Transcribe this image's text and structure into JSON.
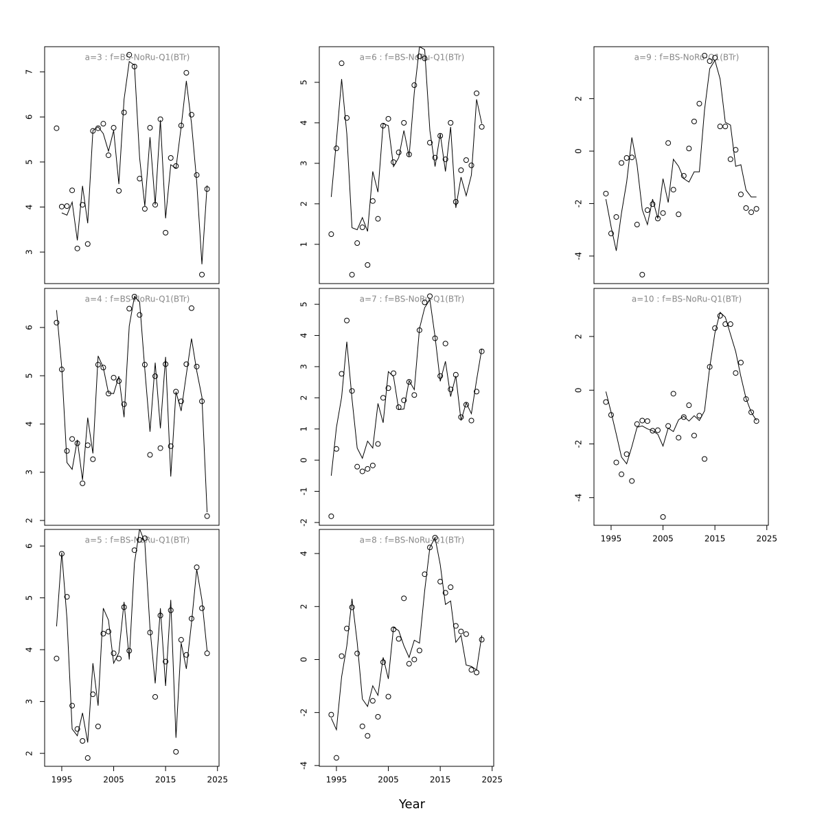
{
  "xlabel": "Year",
  "chart_data": [
    {
      "type": "line",
      "title": "a=3 : f=BS-NoRu-Q1(BTr)",
      "x": [
        1994,
        1995,
        1996,
        1997,
        1998,
        1999,
        2000,
        2001,
        2002,
        2003,
        2004,
        2005,
        2006,
        2007,
        2008,
        2009,
        2010,
        2011,
        2012,
        2013,
        2014,
        2015,
        2016,
        2017,
        2018,
        2019,
        2020,
        2021,
        2022,
        2023
      ],
      "series": [
        {
          "marker": "circle",
          "values": [
            5.75,
            4.01,
            4.02,
            4.37,
            3.08,
            4.05,
            3.18,
            5.69,
            5.75,
            5.85,
            5.15,
            5.76,
            4.36,
            6.1,
            7.38,
            7.12,
            4.63,
            3.96,
            5.76,
            4.05,
            5.95,
            3.43,
            5.09,
            4.91,
            5.81,
            6.98,
            6.05,
            4.71,
            2.5,
            4.4
          ]
        },
        {
          "marker": "none",
          "values": [
            null,
            3.87,
            3.82,
            4.11,
            3.26,
            4.47,
            3.64,
            5.7,
            5.78,
            5.63,
            5.24,
            5.7,
            4.51,
            6.39,
            7.23,
            7.15,
            5.09,
            4.02,
            5.55,
            4.05,
            5.93,
            3.75,
            4.94,
            4.86,
            5.78,
            6.8,
            5.85,
            4.56,
            2.73,
            4.48
          ]
        }
      ],
      "xlim": [
        1991.7,
        2025.3
      ],
      "ylim": [
        2.3,
        7.56
      ],
      "yticks": [
        3,
        4,
        5,
        6,
        7
      ]
    },
    {
      "type": "line",
      "title": "a=4 : f=BS-NoRu-Q1(BTr)",
      "x": [
        1994,
        1995,
        1996,
        1997,
        1998,
        1999,
        2000,
        2001,
        2002,
        2003,
        2004,
        2005,
        2006,
        2007,
        2008,
        2009,
        2010,
        2011,
        2012,
        2013,
        2014,
        2015,
        2016,
        2017,
        2018,
        2019,
        2020,
        2021,
        2022,
        2023
      ],
      "series": [
        {
          "marker": "circle",
          "values": [
            6.1,
            5.13,
            3.44,
            3.69,
            3.6,
            2.77,
            3.56,
            3.27,
            5.23,
            5.17,
            4.63,
            4.96,
            4.89,
            4.41,
            6.39,
            6.64,
            6.26,
            5.23,
            3.36,
            4.99,
            3.5,
            5.24,
            3.54,
            4.67,
            4.47,
            5.24,
            6.4,
            5.19,
            4.47,
            2.09
          ]
        },
        {
          "marker": "none",
          "values": [
            6.36,
            5.17,
            3.2,
            3.06,
            3.67,
            2.84,
            4.13,
            3.39,
            5.41,
            5.17,
            4.64,
            4.63,
            4.99,
            4.14,
            6.03,
            6.64,
            6.53,
            5.13,
            3.84,
            5.27,
            3.91,
            5.39,
            2.91,
            4.67,
            4.27,
            5.03,
            5.77,
            5.1,
            4.56,
            2.17
          ]
        }
      ],
      "xlim": [
        1991.7,
        2025.3
      ],
      "ylim": [
        1.9,
        6.81
      ],
      "yticks": [
        2,
        3,
        4,
        5,
        6
      ]
    },
    {
      "type": "line",
      "title": "a=5 : f=BS-NoRu-Q1(BTr)",
      "x": [
        1994,
        1995,
        1996,
        1997,
        1998,
        1999,
        2000,
        2001,
        2002,
        2003,
        2004,
        2005,
        2006,
        2007,
        2008,
        2009,
        2010,
        2011,
        2012,
        2013,
        2014,
        2015,
        2016,
        2017,
        2018,
        2019,
        2020,
        2021,
        2022,
        2023
      ],
      "series": [
        {
          "marker": "circle",
          "values": [
            3.83,
            5.85,
            5.02,
            2.92,
            2.47,
            2.24,
            1.91,
            3.14,
            2.52,
            4.31,
            4.35,
            3.93,
            3.83,
            4.82,
            3.98,
            5.92,
            6.12,
            6.15,
            4.33,
            3.09,
            4.66,
            3.77,
            4.76,
            2.03,
            4.19,
            3.9,
            4.6,
            5.59,
            4.8,
            3.93
          ]
        },
        {
          "marker": "none",
          "values": [
            4.45,
            5.87,
            4.6,
            2.47,
            2.34,
            2.78,
            2.21,
            3.74,
            2.92,
            4.8,
            4.57,
            3.74,
            3.94,
            4.92,
            3.81,
            5.67,
            6.33,
            6.07,
            4.41,
            3.35,
            4.8,
            3.3,
            4.96,
            2.3,
            4.13,
            3.63,
            4.52,
            5.55,
            4.96,
            3.98
          ]
        }
      ],
      "xlim": [
        1991.7,
        2025.3
      ],
      "ylim": [
        1.75,
        6.32
      ],
      "yticks": [
        2,
        3,
        4,
        5,
        6
      ],
      "xticks": [
        1995,
        2005,
        2015,
        2025
      ]
    },
    {
      "type": "line",
      "title": "a=6 : f=BS-NoRu-Q1(BTr)",
      "x": [
        1994,
        1995,
        1996,
        1997,
        1998,
        1999,
        2000,
        2001,
        2002,
        2003,
        2004,
        2005,
        2006,
        2007,
        2008,
        2009,
        2010,
        2011,
        2012,
        2013,
        2014,
        2015,
        2016,
        2017,
        2018,
        2019,
        2020,
        2021,
        2022,
        2023
      ],
      "series": [
        {
          "marker": "circle",
          "values": [
            1.25,
            3.37,
            5.47,
            4.12,
            0.25,
            1.03,
            1.42,
            0.49,
            2.07,
            1.63,
            3.93,
            4.1,
            3.03,
            3.27,
            4.0,
            3.22,
            4.93,
            5.64,
            5.59,
            3.51,
            3.14,
            3.68,
            3.1,
            4.0,
            2.05,
            2.83,
            3.08,
            2.95,
            4.73,
            3.9
          ]
        },
        {
          "marker": "none",
          "values": [
            2.17,
            3.56,
            5.08,
            3.73,
            1.41,
            1.36,
            1.66,
            1.32,
            2.8,
            2.29,
            3.98,
            3.93,
            2.92,
            3.14,
            3.81,
            3.17,
            4.75,
            5.88,
            5.81,
            3.81,
            2.92,
            3.73,
            2.8,
            3.9,
            1.9,
            2.66,
            2.2,
            2.71,
            4.58,
            3.98
          ]
        }
      ],
      "xlim": [
        1991.7,
        2025.3
      ],
      "ylim": [
        0.03,
        5.88
      ],
      "yticks": [
        1,
        2,
        3,
        4,
        5
      ]
    },
    {
      "type": "line",
      "title": "a=7 : f=BS-NoRu-Q1(BTr)",
      "x": [
        1994,
        1995,
        1996,
        1997,
        1998,
        1999,
        2000,
        2001,
        2002,
        2003,
        2004,
        2005,
        2006,
        2007,
        2008,
        2009,
        2010,
        2011,
        2012,
        2013,
        2014,
        2015,
        2016,
        2017,
        2018,
        2019,
        2020,
        2021,
        2022,
        2023
      ],
      "series": [
        {
          "marker": "circle",
          "values": [
            -1.8,
            0.36,
            2.77,
            4.48,
            2.22,
            -0.21,
            -0.36,
            -0.28,
            -0.17,
            0.52,
            2.0,
            2.31,
            2.79,
            1.7,
            1.92,
            2.51,
            2.09,
            4.17,
            5.06,
            5.26,
            3.91,
            2.7,
            3.74,
            2.27,
            2.74,
            1.38,
            1.78,
            1.27,
            2.2,
            3.49
          ]
        },
        {
          "marker": "none",
          "values": [
            -0.5,
            1.05,
            2.02,
            3.8,
            1.97,
            0.39,
            0.06,
            0.61,
            0.39,
            1.82,
            1.2,
            2.84,
            2.68,
            1.62,
            1.64,
            2.55,
            2.26,
            4.22,
            4.89,
            5.15,
            3.96,
            2.53,
            3.17,
            2.04,
            2.7,
            1.27,
            1.84,
            1.49,
            2.57,
            3.57
          ]
        }
      ],
      "xlim": [
        1991.7,
        2025.3
      ],
      "ylim": [
        -2.09,
        5.51
      ],
      "yticks": [
        -2,
        -1,
        0,
        1,
        2,
        3,
        4,
        5
      ]
    },
    {
      "type": "line",
      "title": "a=8 : f=BS-NoRu-Q1(BTr)",
      "x": [
        1994,
        1995,
        1996,
        1997,
        1998,
        1999,
        2000,
        2001,
        2002,
        2003,
        2004,
        2005,
        2006,
        2007,
        2008,
        2009,
        2010,
        2011,
        2012,
        2013,
        2014,
        2015,
        2016,
        2017,
        2018,
        2019,
        2020,
        2021,
        2022,
        2023
      ],
      "series": [
        {
          "marker": "circle",
          "values": [
            -2.08,
            -3.71,
            0.13,
            1.17,
            1.97,
            0.23,
            -2.52,
            -2.88,
            -1.56,
            -2.16,
            -0.1,
            -1.4,
            1.14,
            0.78,
            2.31,
            -0.16,
            0.0,
            0.34,
            3.22,
            4.23,
            4.6,
            2.94,
            2.52,
            2.73,
            1.27,
            1.06,
            0.96,
            -0.39,
            -0.49,
            0.75
          ]
        },
        {
          "marker": "none",
          "values": [
            -2.21,
            -2.65,
            -0.65,
            0.52,
            2.29,
            0.65,
            -1.49,
            -1.77,
            -0.99,
            -1.35,
            0.08,
            -0.73,
            1.22,
            1.09,
            0.52,
            0.08,
            0.73,
            0.62,
            2.6,
            4.23,
            4.6,
            3.58,
            2.08,
            2.21,
            0.65,
            0.91,
            -0.21,
            -0.26,
            -0.39,
            0.91
          ]
        }
      ],
      "xlim": [
        1991.7,
        2025.3
      ],
      "ylim": [
        -4.03,
        4.91
      ],
      "yticks": [
        -4,
        -2,
        0,
        2,
        4
      ],
      "xticks": [
        1995,
        2005,
        2015,
        2025
      ]
    },
    {
      "type": "line",
      "title": "a=9 : f=BS-NoRu-Q1(BTr)",
      "x": [
        1994,
        1995,
        1996,
        1997,
        1998,
        1999,
        2000,
        2001,
        2002,
        2003,
        2004,
        2005,
        2006,
        2007,
        2008,
        2009,
        2010,
        2011,
        2012,
        2013,
        2014,
        2015,
        2016,
        2017,
        2018,
        2019,
        2020,
        2021,
        2022,
        2023
      ],
      "series": [
        {
          "marker": "circle",
          "values": [
            -1.62,
            -3.14,
            -2.51,
            -0.45,
            -0.26,
            -0.24,
            -2.8,
            -4.71,
            -2.25,
            -2.02,
            -2.57,
            -2.36,
            0.31,
            -1.47,
            -2.41,
            -0.94,
            0.1,
            1.13,
            1.81,
            3.64,
            3.43,
            3.56,
            0.94,
            0.94,
            -0.31,
            0.05,
            -1.65,
            -2.17,
            -2.33,
            -2.2
          ]
        },
        {
          "marker": "none",
          "values": [
            -1.83,
            -2.88,
            -3.8,
            -2.36,
            -1.18,
            0.52,
            -0.52,
            -2.23,
            -2.8,
            -1.83,
            -2.57,
            -1.05,
            -1.96,
            -0.31,
            -0.58,
            -1.05,
            -1.18,
            -0.79,
            -0.79,
            1.57,
            3.14,
            3.46,
            2.75,
            1.1,
            0.99,
            -0.58,
            -0.52,
            -1.49,
            -1.75,
            -1.75
          ]
        }
      ],
      "xlim": [
        1991.7,
        2025.3
      ],
      "ylim": [
        -5.05,
        3.98
      ],
      "yticks": [
        -4,
        -2,
        0,
        2
      ]
    },
    {
      "type": "line",
      "title": "a=10 : f=BS-NoRu-Q1(BTr)",
      "x": [
        1994,
        1995,
        1996,
        1997,
        1998,
        1999,
        2000,
        2001,
        2002,
        2003,
        2004,
        2005,
        2006,
        2007,
        2008,
        2009,
        2010,
        2011,
        2012,
        2013,
        2014,
        2015,
        2016,
        2017,
        2018,
        2019,
        2020,
        2021,
        2022,
        2023
      ],
      "series": [
        {
          "marker": "circle",
          "values": [
            -0.44,
            -0.92,
            -2.69,
            -3.13,
            -2.38,
            -3.38,
            -1.26,
            -1.13,
            -1.15,
            -1.51,
            -1.49,
            -4.72,
            -1.33,
            -0.13,
            -1.77,
            -1.0,
            -0.56,
            -1.69,
            -0.95,
            -2.56,
            0.87,
            2.31,
            2.77,
            2.46,
            2.46,
            0.64,
            1.03,
            -0.33,
            -0.82,
            -1.15
          ]
        },
        {
          "marker": "none",
          "values": [
            -0.05,
            -0.82,
            -1.64,
            -2.49,
            -2.74,
            -2.1,
            -1.38,
            -1.33,
            -1.44,
            -1.51,
            -1.64,
            -2.08,
            -1.41,
            -1.54,
            -1.1,
            -0.97,
            -1.15,
            -0.95,
            -1.13,
            -0.77,
            0.85,
            2.13,
            2.9,
            2.72,
            2.08,
            1.44,
            0.51,
            -0.31,
            -0.82,
            -1.13
          ]
        }
      ],
      "xlim": [
        1991.7,
        2025.3
      ],
      "ylim": [
        -5.03,
        3.79
      ],
      "yticks": [
        -4,
        -2,
        0,
        2
      ],
      "xticks": [
        1995,
        2005,
        2015,
        2025
      ]
    }
  ]
}
